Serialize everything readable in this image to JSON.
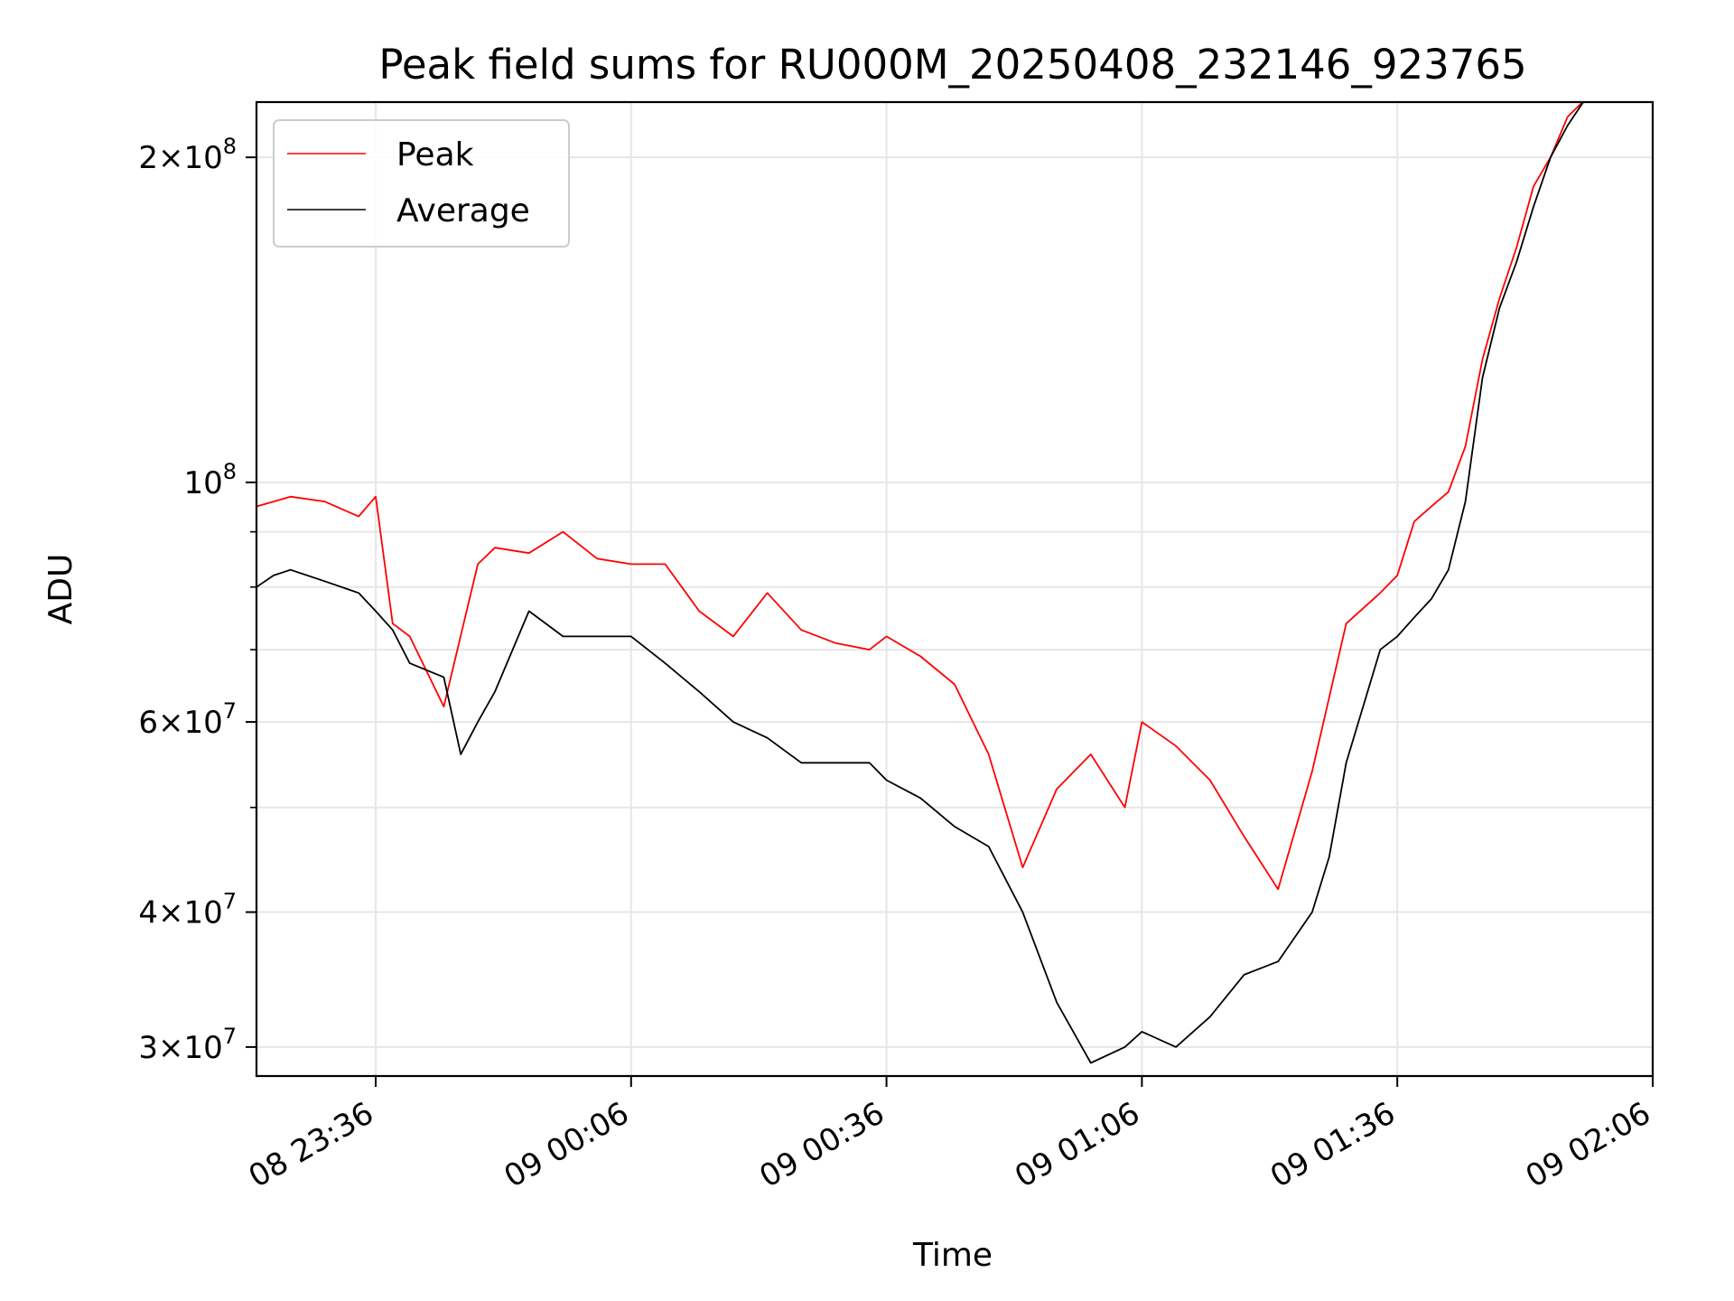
{
  "chart_data": {
    "type": "line",
    "title": "Peak field sums for RU000M_20250408_232146_923765",
    "xlabel": "Time",
    "ylabel": "ADU",
    "y_scale": "log",
    "grid": true,
    "legend_position": "top-left",
    "xlim": [
      "2025-04-08 23:22",
      "2025-04-09 02:06"
    ],
    "ylim": [
      28200000,
      225000000
    ],
    "x_ticks": [
      {
        "label": "08 23:36",
        "time": "2025-04-08 23:36"
      },
      {
        "label": "09 00:06",
        "time": "2025-04-09 00:06"
      },
      {
        "label": "09 00:36",
        "time": "2025-04-09 00:36"
      },
      {
        "label": "09 01:06",
        "time": "2025-04-09 01:06"
      },
      {
        "label": "09 01:36",
        "time": "2025-04-09 01:36"
      },
      {
        "label": "09 02:06",
        "time": "2025-04-09 02:06"
      }
    ],
    "y_ticks": [
      {
        "value": 30000000,
        "mantissa": "3",
        "exponent": "7"
      },
      {
        "value": 40000000,
        "mantissa": "4",
        "exponent": "7"
      },
      {
        "value": 60000000,
        "mantissa": "6",
        "exponent": "7"
      },
      {
        "value": 100000000,
        "mantissa": "",
        "exponent": "8"
      },
      {
        "value": 200000000,
        "mantissa": "2",
        "exponent": "8"
      }
    ],
    "y_minor_ticks": [
      50000000,
      70000000,
      80000000,
      90000000
    ],
    "series": [
      {
        "name": "Peak",
        "color": "#ff0000",
        "x": [
          "2025-04-08 23:22",
          "2025-04-08 23:26",
          "2025-04-08 23:30",
          "2025-04-08 23:34",
          "2025-04-08 23:36",
          "2025-04-08 23:38",
          "2025-04-08 23:40",
          "2025-04-08 23:44",
          "2025-04-08 23:48",
          "2025-04-08 23:50",
          "2025-04-08 23:54",
          "2025-04-08 23:58",
          "2025-04-09 00:02",
          "2025-04-09 00:06",
          "2025-04-09 00:10",
          "2025-04-09 00:14",
          "2025-04-09 00:18",
          "2025-04-09 00:22",
          "2025-04-09 00:26",
          "2025-04-09 00:30",
          "2025-04-09 00:34",
          "2025-04-09 00:36",
          "2025-04-09 00:40",
          "2025-04-09 00:44",
          "2025-04-09 00:48",
          "2025-04-09 00:52",
          "2025-04-09 00:56",
          "2025-04-09 01:00",
          "2025-04-09 01:04",
          "2025-04-09 01:06",
          "2025-04-09 01:10",
          "2025-04-09 01:14",
          "2025-04-09 01:18",
          "2025-04-09 01:22",
          "2025-04-09 01:26",
          "2025-04-09 01:30",
          "2025-04-09 01:34",
          "2025-04-09 01:36",
          "2025-04-09 01:38",
          "2025-04-09 01:40",
          "2025-04-09 01:42",
          "2025-04-09 01:44",
          "2025-04-09 01:46",
          "2025-04-09 01:48",
          "2025-04-09 01:50",
          "2025-04-09 01:52",
          "2025-04-09 01:54",
          "2025-04-09 01:56",
          "2025-04-09 01:58"
        ],
        "values": [
          95000000,
          97000000,
          96000000,
          93000000,
          97000000,
          74000000,
          72000000,
          62000000,
          84000000,
          87000000,
          86000000,
          90000000,
          85000000,
          84000000,
          84000000,
          76000000,
          72000000,
          79000000,
          73000000,
          71000000,
          70000000,
          72000000,
          69000000,
          65000000,
          56000000,
          44000000,
          52000000,
          56000000,
          50000000,
          60000000,
          57000000,
          53000000,
          47000000,
          42000000,
          54000000,
          74000000,
          79000000,
          82000000,
          92000000,
          95000000,
          98000000,
          108000000,
          130000000,
          148000000,
          165000000,
          188000000,
          200000000,
          218000000,
          226000000
        ]
      },
      {
        "name": "Average",
        "color": "#000000",
        "x": [
          "2025-04-08 23:22",
          "2025-04-08 23:24",
          "2025-04-08 23:26",
          "2025-04-08 23:30",
          "2025-04-08 23:34",
          "2025-04-08 23:36",
          "2025-04-08 23:38",
          "2025-04-08 23:40",
          "2025-04-08 23:44",
          "2025-04-08 23:46",
          "2025-04-08 23:48",
          "2025-04-08 23:50",
          "2025-04-08 23:54",
          "2025-04-08 23:58",
          "2025-04-09 00:02",
          "2025-04-09 00:06",
          "2025-04-09 00:10",
          "2025-04-09 00:14",
          "2025-04-09 00:18",
          "2025-04-09 00:22",
          "2025-04-09 00:26",
          "2025-04-09 00:30",
          "2025-04-09 00:34",
          "2025-04-09 00:36",
          "2025-04-09 00:40",
          "2025-04-09 00:44",
          "2025-04-09 00:48",
          "2025-04-09 00:52",
          "2025-04-09 00:56",
          "2025-04-09 01:00",
          "2025-04-09 01:04",
          "2025-04-09 01:06",
          "2025-04-09 01:10",
          "2025-04-09 01:14",
          "2025-04-09 01:18",
          "2025-04-09 01:22",
          "2025-04-09 01:26",
          "2025-04-09 01:28",
          "2025-04-09 01:30",
          "2025-04-09 01:34",
          "2025-04-09 01:36",
          "2025-04-09 01:38",
          "2025-04-09 01:40",
          "2025-04-09 01:42",
          "2025-04-09 01:44",
          "2025-04-09 01:46",
          "2025-04-09 01:48",
          "2025-04-09 01:50",
          "2025-04-09 01:52",
          "2025-04-09 01:54",
          "2025-04-09 01:56",
          "2025-04-09 01:58"
        ],
        "values": [
          80000000,
          82000000,
          83000000,
          81000000,
          79000000,
          76000000,
          73000000,
          68000000,
          66000000,
          56000000,
          60000000,
          64000000,
          76000000,
          72000000,
          72000000,
          72000000,
          68000000,
          64000000,
          60000000,
          58000000,
          55000000,
          55000000,
          55000000,
          53000000,
          51000000,
          48000000,
          46000000,
          40000000,
          33000000,
          29000000,
          30000000,
          31000000,
          30000000,
          32000000,
          35000000,
          36000000,
          40000000,
          45000000,
          55000000,
          70000000,
          72000000,
          75000000,
          78000000,
          83000000,
          96000000,
          125000000,
          145000000,
          160000000,
          180000000,
          200000000,
          214000000,
          226000000
        ]
      }
    ]
  }
}
